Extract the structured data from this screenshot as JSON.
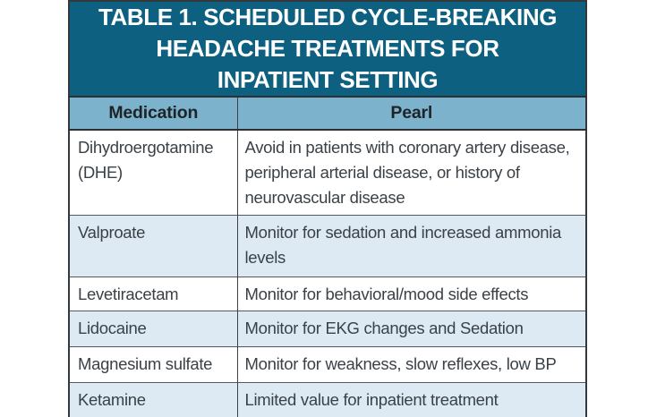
{
  "table": {
    "title_lines": [
      "TABLE 1. SCHEDULED CYCLE-BREAKING",
      "HEADACHE TREATMENTS FOR",
      "INPATIENT SETTING"
    ],
    "columns": [
      "Medication",
      "Pearl"
    ],
    "rows": [
      {
        "medication": "Dihydroergotamine (DHE)",
        "pearl": "Avoid in patients with coronary artery disease, peripheral arterial disease, or history of neurovascular disease",
        "shaded": false
      },
      {
        "medication": "Valproate",
        "pearl": "Monitor for sedation and increased ammonia levels",
        "shaded": true
      },
      {
        "medication": "Levetiracetam",
        "pearl": "Monitor for behavioral/mood side effects",
        "shaded": false
      },
      {
        "medication": "Lidocaine",
        "pearl": "Monitor for EKG changes and Sedation",
        "shaded": true
      },
      {
        "medication": "Magnesium sulfate",
        "pearl": "Monitor for weakness, slow reflexes, low BP",
        "shaded": false
      },
      {
        "medication": "Ketamine",
        "pearl": "Limited value for inpatient treatment",
        "shaded": true
      }
    ],
    "colors": {
      "title_background": "#0e6080",
      "title_text": "#ffffff",
      "header_background": "#7cb2cc",
      "header_text": "#1e2327",
      "row_shaded_background": "#ddeaf4",
      "row_background": "#ffffff",
      "body_text": "#3a4147",
      "border_outer": "#33383c",
      "border_inner": "#55595d"
    }
  }
}
